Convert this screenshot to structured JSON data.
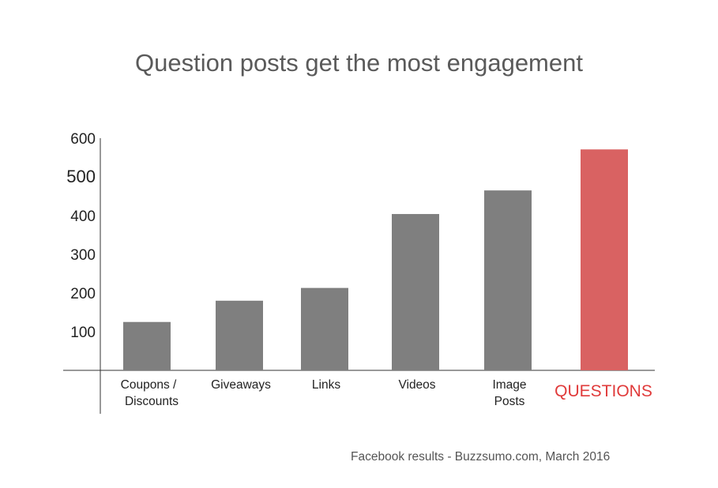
{
  "chart_data": {
    "type": "bar",
    "title": "Question posts get the most engagement",
    "categories": [
      [
        "Coupons /",
        "Discounts"
      ],
      [
        "Giveaways"
      ],
      [
        "Links"
      ],
      [
        "Videos"
      ],
      [
        "Image",
        "Posts"
      ],
      [
        "QUESTIONS"
      ]
    ],
    "values": [
      125,
      180,
      213,
      404,
      465,
      571
    ],
    "highlight_index": 5,
    "colors": {
      "bar": "#7f7f7f",
      "highlight": "#d96262",
      "axis": "#333333",
      "text": "#222222"
    },
    "y_ticks": [
      100,
      200,
      300,
      400,
      500,
      600
    ],
    "ylim": [
      0,
      600
    ],
    "grid": false,
    "xlabel": "",
    "ylabel": ""
  },
  "source_note": "Facebook results - Buzzsumo.com, March 2016"
}
